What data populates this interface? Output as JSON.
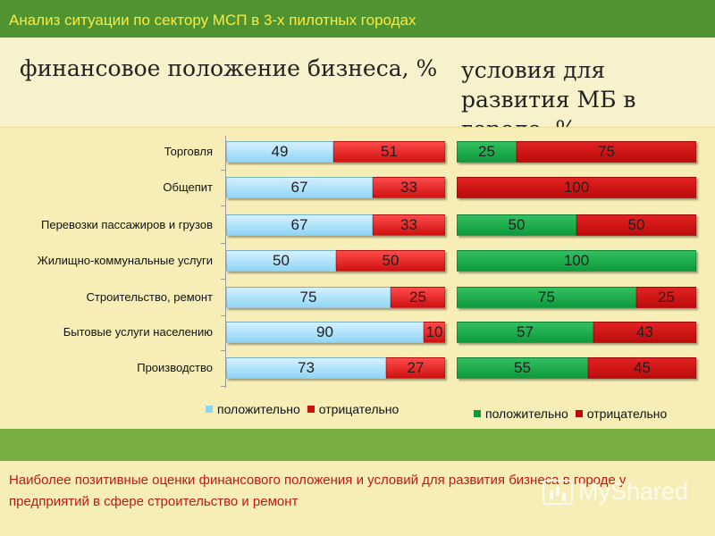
{
  "page": {
    "title": "Анализ ситуации по сектору МСП в 3-х пилотных городах",
    "note": "Наиболее позитивные оценки финансового положения и условий для развития бизнеса в городе у предприятий в сфере строительство и ремонт",
    "watermark": "MyShared"
  },
  "colors": {
    "header_band": "#4f9431",
    "header_text": "#ffe93a",
    "background": "#f6eeb6",
    "positive_left": "#8fd6f6",
    "negative": "#cf1010",
    "positive_right": "#0e9a3c",
    "note_text": "#c01818"
  },
  "chart_data": [
    {
      "type": "bar",
      "orientation": "horizontal",
      "stacked": true,
      "title": "финансовое положение бизнеса, %",
      "categories": [
        "Торговля",
        "Общепит",
        "Перевозки пассажиров и грузов",
        "Жилищно-коммунальные услуги",
        "Строительство, ремонт",
        "Бытовые услуги населению",
        "Производство"
      ],
      "series": [
        {
          "name": "положительно",
          "values": [
            49,
            67,
            67,
            50,
            75,
            90,
            73
          ]
        },
        {
          "name": "отрицательно",
          "values": [
            51,
            33,
            33,
            50,
            25,
            10,
            27
          ]
        }
      ],
      "xlim": [
        0,
        100
      ],
      "legend": "bottom"
    },
    {
      "type": "bar",
      "orientation": "horizontal",
      "stacked": true,
      "title": "условия для развития МБ в городе, %",
      "categories": [
        "Торговля",
        "Общепит",
        "Перевозки пассажиров и грузов",
        "Жилищно-коммунальные услуги",
        "Строительство, ремонт",
        "Бытовые услуги населению",
        "Производство"
      ],
      "series": [
        {
          "name": "положительно",
          "values": [
            25,
            0,
            50,
            100,
            75,
            57,
            55
          ]
        },
        {
          "name": "отрицательно",
          "values": [
            75,
            100,
            50,
            0,
            25,
            43,
            45
          ]
        }
      ],
      "xlim": [
        0,
        100
      ],
      "legend": "bottom"
    }
  ]
}
